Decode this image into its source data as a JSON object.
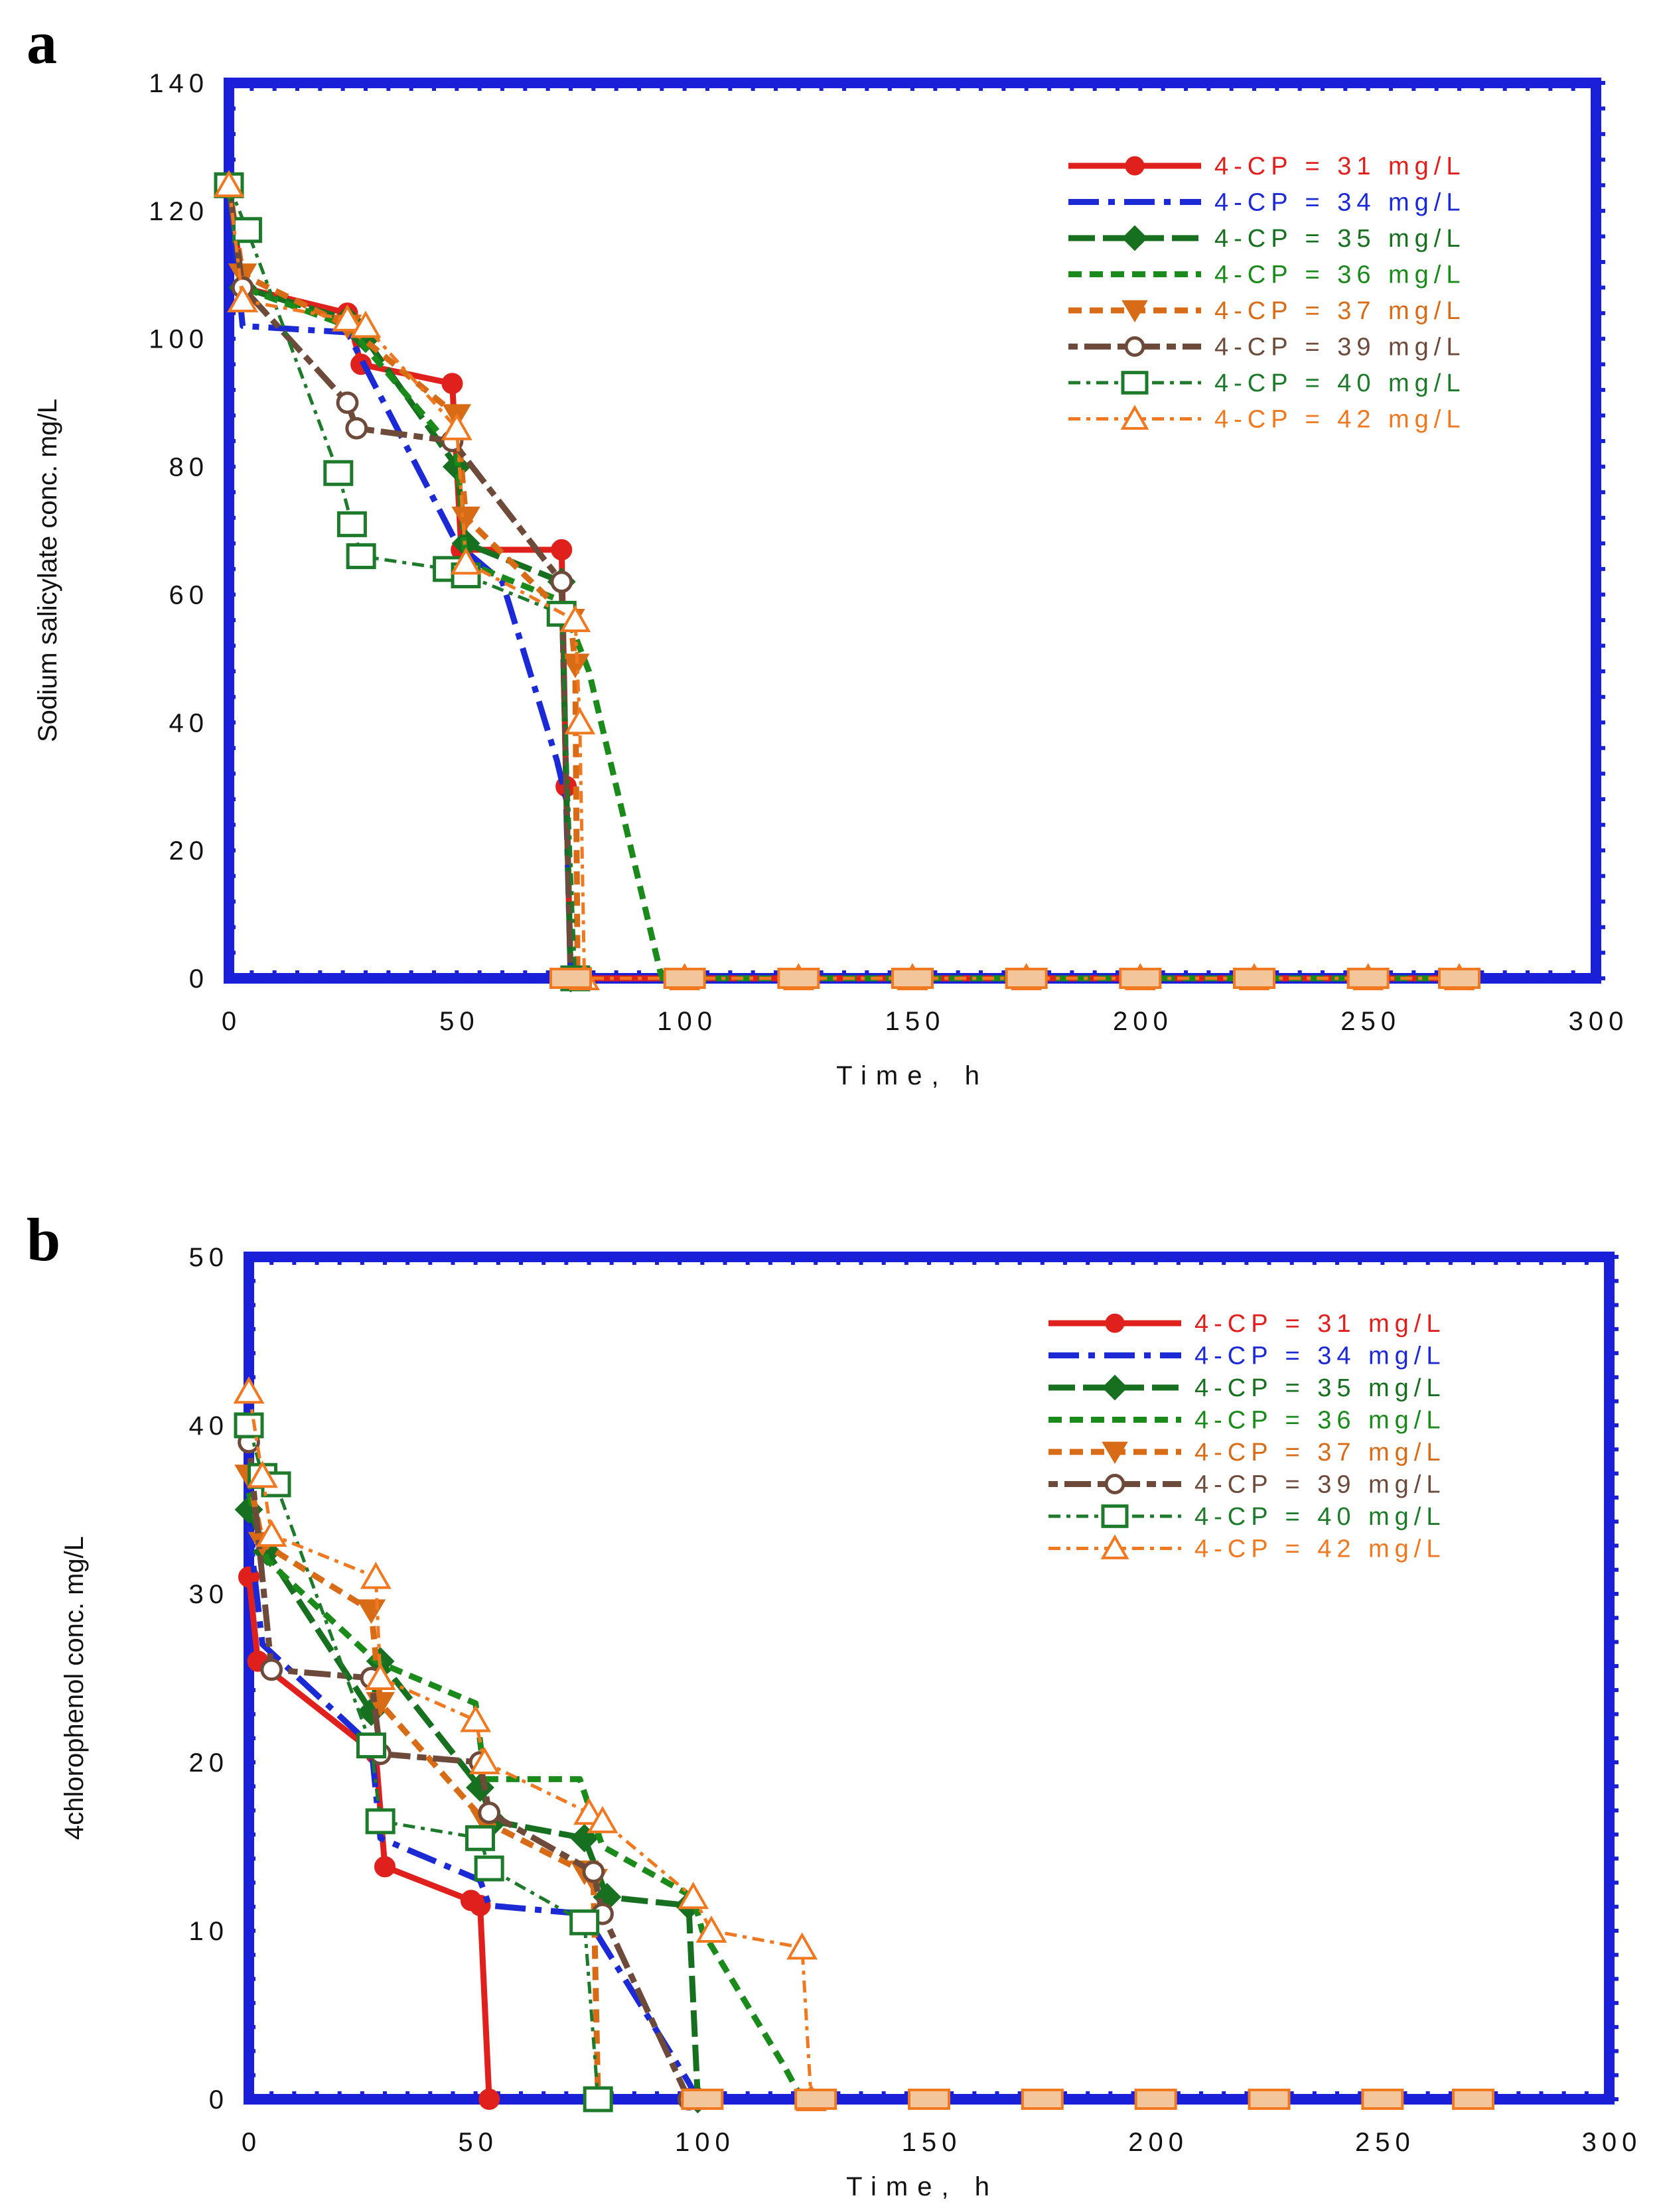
{
  "chart_data": [
    {
      "panel_label": "a",
      "type": "line",
      "xlabel": "Time, h",
      "ylabel": "Sodium salicylate conc. mg/L",
      "xlim": [
        0,
        300
      ],
      "ylim": [
        0,
        140
      ],
      "xticks": [
        0,
        50,
        100,
        150,
        200,
        250,
        300
      ],
      "yticks": [
        0,
        20,
        40,
        60,
        80,
        100,
        120,
        140
      ],
      "grid": false,
      "legend_position": "top-right",
      "series": [
        {
          "name": "4-CP = 31 mg/L",
          "color": "#e0201c",
          "dash": "solid",
          "marker": "filled-circle",
          "x": [
            0,
            3,
            26,
            29,
            49,
            51,
            73,
            74,
            75,
            100,
            125,
            150,
            175,
            200,
            225,
            250,
            270
          ],
          "y": [
            124,
            108,
            104,
            96,
            93,
            67,
            67,
            30,
            0,
            0,
            0,
            0,
            0,
            0,
            0,
            0,
            0
          ]
        },
        {
          "name": "4-CP = 34 mg/L",
          "color": "#1c2ad6",
          "dash": "dashdot",
          "marker": "none",
          "x": [
            0,
            3,
            26,
            50,
            60,
            72,
            74,
            75
          ],
          "y": [
            124,
            102,
            101,
            68,
            62,
            34,
            28,
            0
          ]
        },
        {
          "name": "4-CP = 35 mg/L",
          "color": "#17701f",
          "dash": "longdash",
          "marker": "filled-diamond",
          "x": [
            0,
            3,
            26,
            30,
            50,
            52,
            73,
            75
          ],
          "y": [
            124,
            108,
            103,
            100,
            80,
            68,
            62,
            0
          ]
        },
        {
          "name": "4-CP = 36 mg/L",
          "color": "#1a8a1a",
          "dash": "dashed",
          "marker": "none",
          "x": [
            0,
            3,
            26,
            50,
            52,
            73,
            79,
            95,
            100,
            125,
            150,
            175,
            200,
            225,
            250,
            270
          ],
          "y": [
            124,
            108,
            102,
            82,
            65,
            59,
            48,
            0,
            0,
            0,
            0,
            0,
            0,
            0,
            0,
            0
          ]
        },
        {
          "name": "4-CP = 37 mg/L",
          "color": "#d86b16",
          "dash": "dashed",
          "marker": "filled-triangle-down",
          "x": [
            0,
            3,
            26,
            50,
            52,
            75,
            76,
            76.5
          ],
          "y": [
            124,
            110,
            102,
            88,
            72,
            56,
            49,
            0
          ]
        },
        {
          "name": "4-CP = 39 mg/L",
          "color": "#6e4a3a",
          "dash": "dash-solid",
          "marker": "open-circle",
          "x": [
            0,
            3,
            26,
            28,
            49,
            73,
            75
          ],
          "y": [
            124,
            108,
            90,
            86,
            84,
            62,
            0
          ]
        },
        {
          "name": "4-CP = 40 mg/L",
          "color": "#1d7a2a",
          "dash": "dashdot-thin",
          "marker": "open-square",
          "x": [
            0,
            4,
            24,
            27,
            29,
            48,
            52,
            73,
            76
          ],
          "y": [
            124,
            117,
            79,
            71,
            66,
            64,
            63,
            57,
            0
          ]
        },
        {
          "name": "4-CP = 42 mg/L",
          "color": "#f07820",
          "dash": "dashdot-thin",
          "marker": "open-triangle-up",
          "x": [
            0,
            3,
            26,
            30,
            50,
            52,
            76,
            77,
            78,
            100,
            125,
            150,
            175,
            200,
            225,
            250,
            270
          ],
          "y": [
            124,
            106,
            103,
            102,
            86,
            65,
            56,
            40,
            0,
            0,
            0,
            0,
            0,
            0,
            0,
            0,
            0
          ]
        }
      ]
    },
    {
      "panel_label": "b",
      "type": "line",
      "xlabel": "Time, h",
      "ylabel": "4chlorophenol conc. mg/L",
      "xlim": [
        0,
        300
      ],
      "ylim": [
        0,
        50
      ],
      "xticks": [
        0,
        50,
        100,
        150,
        200,
        250,
        300
      ],
      "yticks": [
        0,
        10,
        20,
        30,
        40,
        50
      ],
      "grid": false,
      "legend_position": "top-right",
      "series": [
        {
          "name": "4-CP = 31 mg/L",
          "color": "#e0201c",
          "dash": "solid",
          "marker": "filled-circle",
          "x": [
            0,
            2,
            28,
            30,
            49,
            51,
            53
          ],
          "y": [
            31,
            26,
            20.5,
            13.8,
            11.8,
            11.5,
            0
          ]
        },
        {
          "name": "4-CP = 34 mg/L",
          "color": "#1c2ad6",
          "dash": "dashdot",
          "marker": "none",
          "x": [
            0,
            3,
            27,
            29,
            51,
            53,
            74,
            97,
            99
          ],
          "y": [
            34,
            27,
            21,
            15.5,
            13,
            11.5,
            11,
            1,
            0
          ]
        },
        {
          "name": "4-CP = 35 mg/L",
          "color": "#17701f",
          "dash": "longdash",
          "marker": "filled-diamond",
          "x": [
            0,
            4,
            27,
            29,
            51,
            54,
            74,
            79,
            97,
            99
          ],
          "y": [
            35,
            32.5,
            23,
            26,
            18.5,
            16.5,
            15.5,
            12,
            11.5,
            0
          ]
        },
        {
          "name": "4-CP = 36 mg/L",
          "color": "#1a8a1a",
          "dash": "dashed",
          "marker": "none",
          "x": [
            0,
            4,
            28,
            50,
            52,
            73,
            78,
            98,
            100,
            118,
            122
          ],
          "y": [
            36,
            32,
            26,
            23.5,
            19,
            19,
            15,
            12,
            10,
            2,
            0
          ]
        },
        {
          "name": "4-CP = 37 mg/L",
          "color": "#d86b16",
          "dash": "dashed",
          "marker": "filled-triangle-down",
          "x": [
            0,
            3,
            27,
            29,
            52,
            74,
            76,
            77
          ],
          "y": [
            37,
            33,
            29,
            23.5,
            16.5,
            13.5,
            13,
            0
          ]
        },
        {
          "name": "4-CP = 39 mg/L",
          "color": "#6e4a3a",
          "dash": "dash-solid",
          "marker": "open-circle",
          "x": [
            0,
            5,
            27,
            29,
            51,
            53,
            76,
            78,
            97,
            99
          ],
          "y": [
            39,
            25.5,
            25,
            20.5,
            20,
            17,
            13.5,
            11,
            0,
            0
          ]
        },
        {
          "name": "4-CP = 40 mg/L",
          "color": "#1d7a2a",
          "dash": "dashdot-thin",
          "marker": "open-square",
          "x": [
            0,
            3,
            6,
            27,
            29,
            51,
            53,
            74,
            77
          ],
          "y": [
            40,
            37,
            36.5,
            21,
            16.5,
            15.5,
            13.7,
            10.5,
            0
          ]
        },
        {
          "name": "4-CP = 42 mg/L",
          "color": "#f07820",
          "dash": "dashdot-thin",
          "marker": "open-triangle-up",
          "x": [
            0,
            3,
            5,
            28,
            29,
            50,
            52,
            75,
            78,
            98,
            102,
            122,
            124
          ],
          "y": [
            42,
            37,
            33.5,
            31,
            25,
            22.5,
            20,
            17,
            16.5,
            12,
            10,
            9,
            0
          ]
        }
      ]
    }
  ],
  "panels": [
    {
      "letter": "a",
      "xlabel": "Time, h",
      "ylabel": "Sodium salicylate conc. mg/L",
      "xtick_labels": [
        "0",
        "50",
        "100",
        "150",
        "200",
        "250",
        "300"
      ],
      "ytick_labels": [
        "0",
        "20",
        "40",
        "60",
        "80",
        "100",
        "120",
        "140"
      ],
      "legend": [
        "4-CP = 31 mg/L",
        "4-CP = 34 mg/L",
        "4-CP = 35 mg/L",
        "4-CP = 36 mg/L",
        "4-CP = 37 mg/L",
        "4-CP = 39 mg/L",
        "4-CP = 40 mg/L",
        "4-CP = 42 mg/L"
      ]
    },
    {
      "letter": "b",
      "xlabel": "Time, h",
      "ylabel": "4chlorophenol conc. mg/L",
      "xtick_labels": [
        "0",
        "50",
        "100",
        "150",
        "200",
        "250",
        "300"
      ],
      "ytick_labels": [
        "0",
        "10",
        "20",
        "30",
        "40",
        "50"
      ],
      "legend": [
        "4-CP = 31 mg/L",
        "4-CP = 34 mg/L",
        "4-CP = 35 mg/L",
        "4-CP = 36 mg/L",
        "4-CP = 37 mg/L",
        "4-CP = 39 mg/L",
        "4-CP = 40 mg/L",
        "4-CP = 42 mg/L"
      ]
    }
  ],
  "colors": {
    "frame": "#1a1fd8",
    "zero_markers": "#f07820"
  }
}
